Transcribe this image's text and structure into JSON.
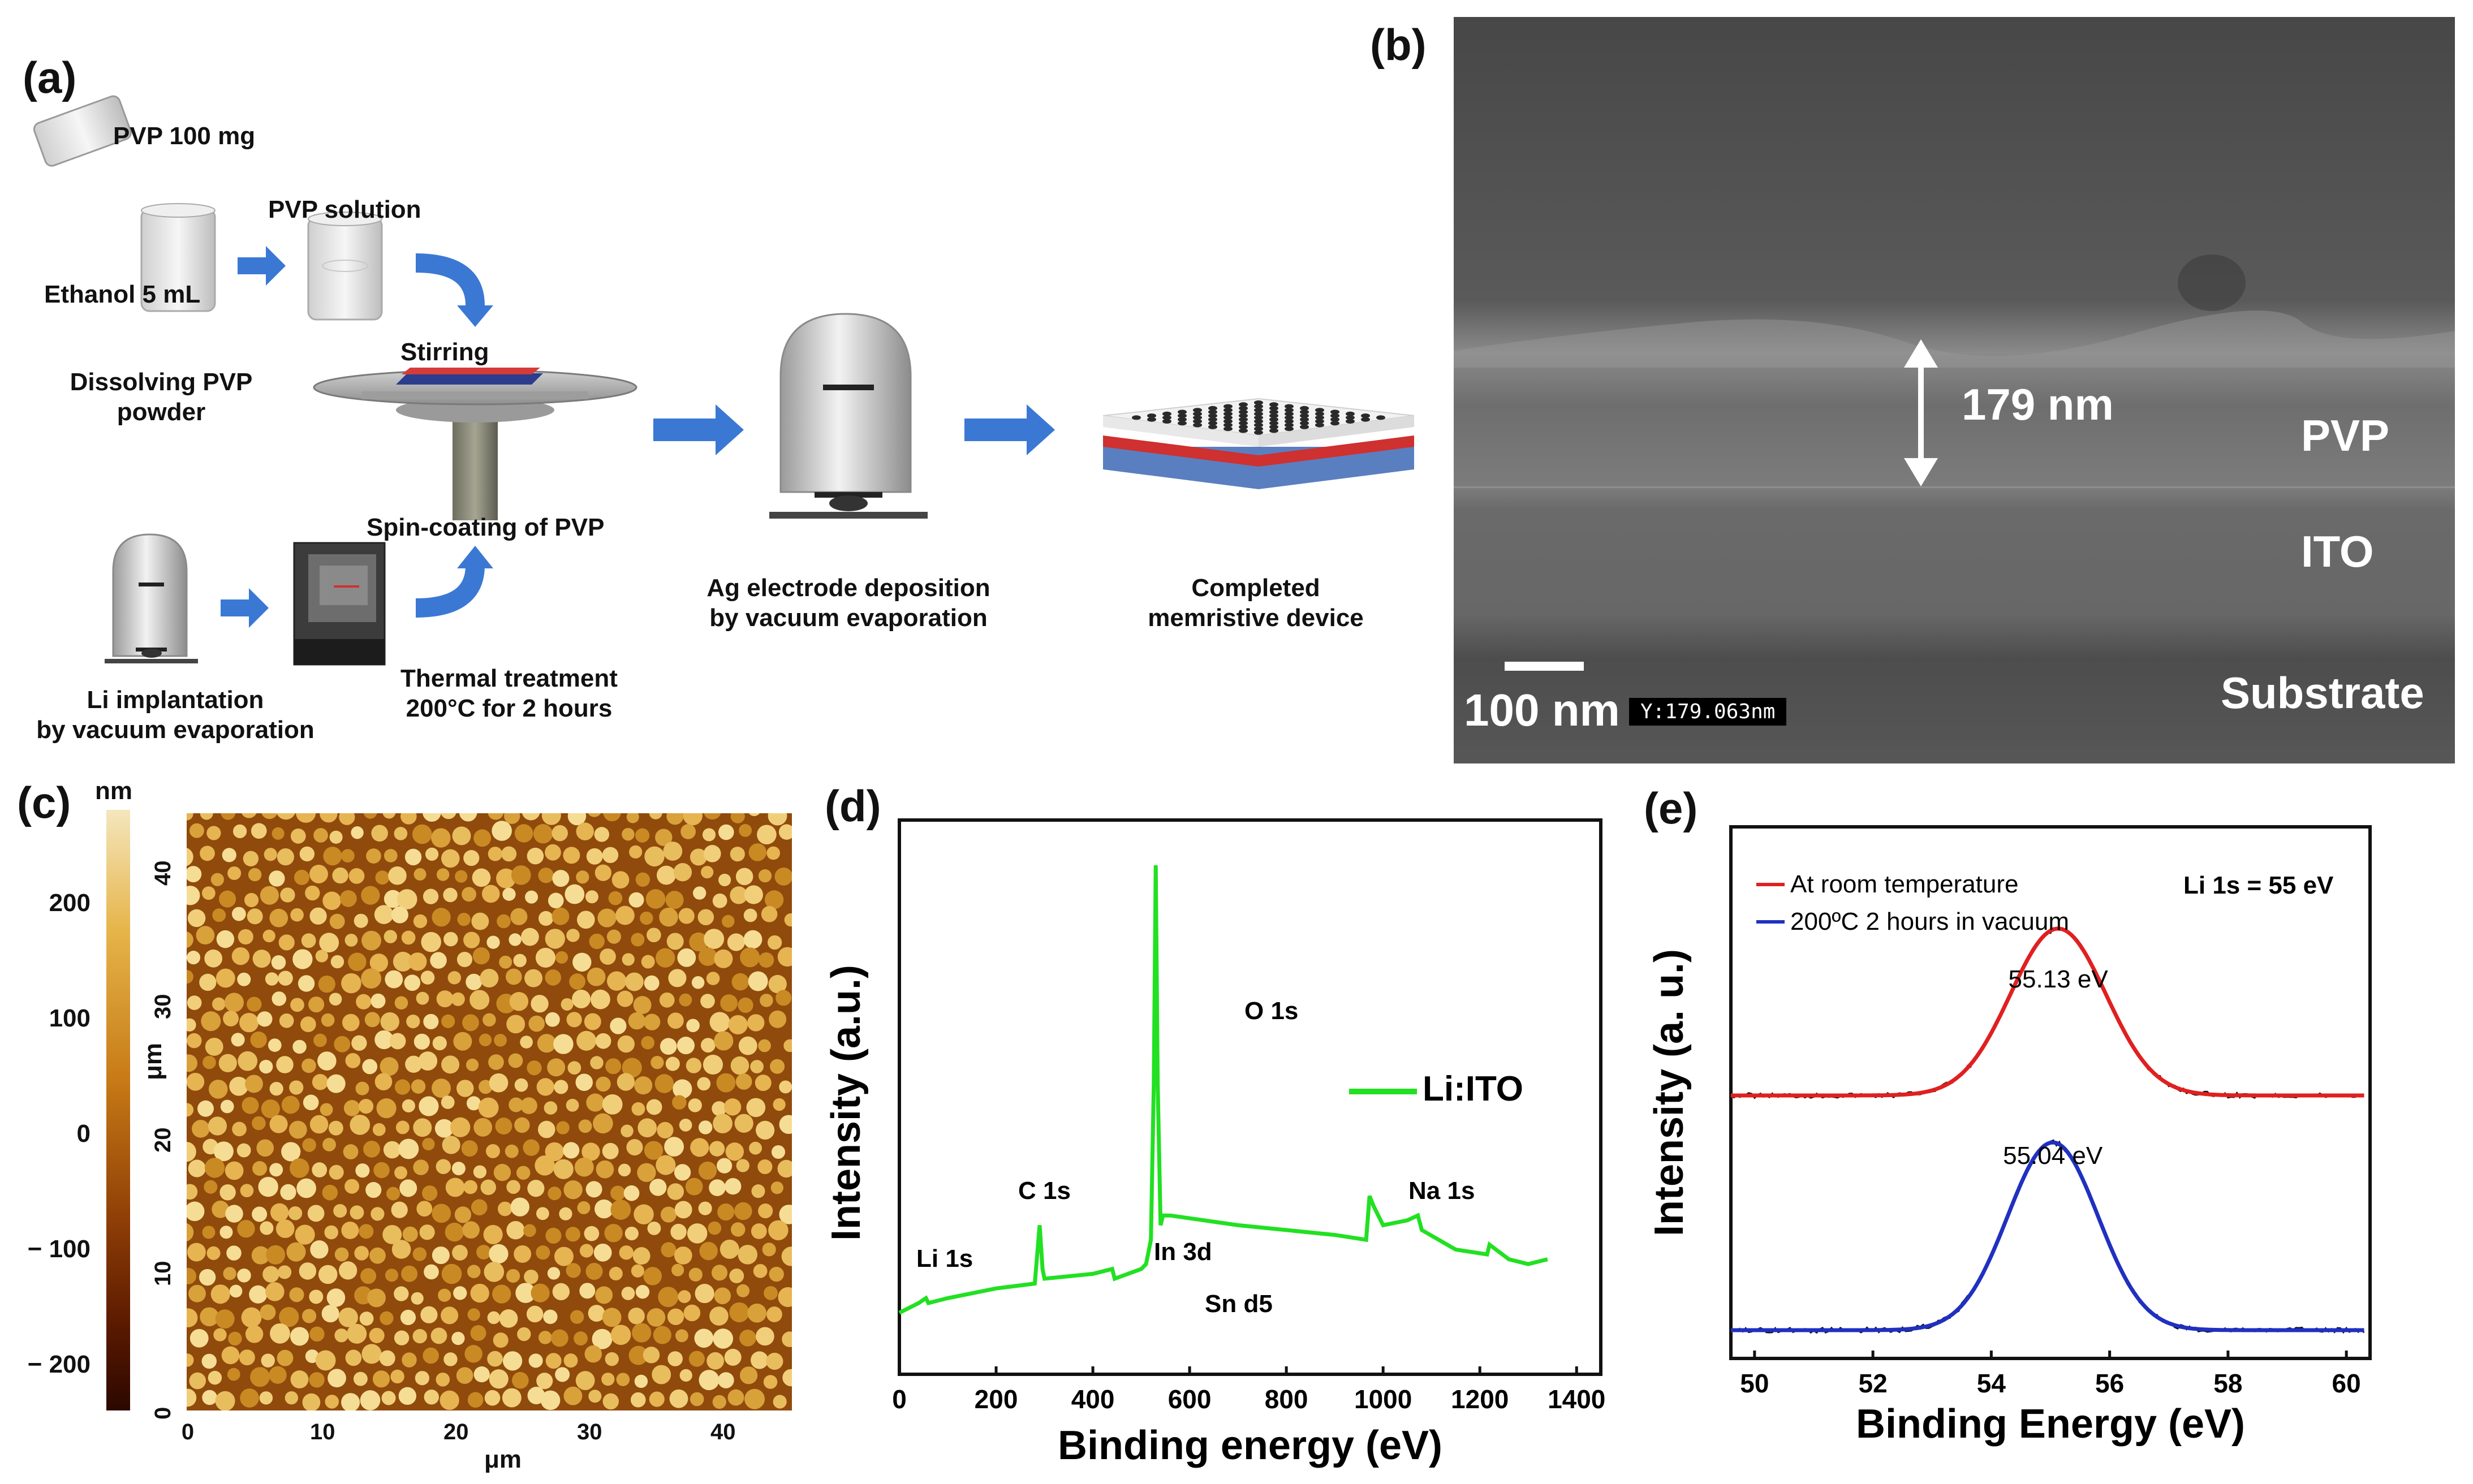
{
  "panel_a": {
    "letter": "(a)",
    "pvp_mass": "PVP 100 mg",
    "ethanol": "Ethanol 5 mL",
    "pvp_solution": "PVP solution",
    "stirring": "Stirring",
    "dissolving_line1": "Dissolving PVP",
    "dissolving_line2": "powder",
    "spin_coating": "Spin-coating of PVP",
    "li_impl_line1": "Li implantation",
    "li_impl_line2": "by vacuum evaporation",
    "thermal_line1": "Thermal treatment",
    "thermal_line2": "200°C for 2 hours",
    "ag_line1": "Ag electrode deposition",
    "ag_line2": "by vacuum evaporation",
    "completed_line1": "Completed",
    "completed_line2": "memristive device"
  },
  "panel_b": {
    "letter": "(b)",
    "thickness": "179 nm",
    "layer_pvp": "PVP",
    "layer_ito": "ITO",
    "layer_substrate": "Substrate",
    "scale": "100 nm",
    "readout": "Y:179.063nm"
  },
  "panel_c": {
    "letter": "(c)",
    "colorbar_unit": "nm",
    "colorbar_ticks": [
      "200",
      "100",
      "0",
      "− 100",
      "− 200"
    ],
    "y_unit": "μm",
    "x_unit": "μm",
    "y_ticks": [
      "0",
      "10",
      "20",
      "30",
      "40"
    ],
    "x_ticks": [
      "0",
      "10",
      "20",
      "30",
      "40"
    ]
  },
  "panel_d": {
    "letter": "(d)",
    "legend": "Li:ITO",
    "ylabel": "Intensity (a.u.)",
    "xlabel": "Binding energy (eV)",
    "peak_labels": [
      "Li 1s",
      "C 1s",
      "In 3d",
      "Sn d5",
      "O 1s",
      "Na 1s"
    ]
  },
  "panel_e": {
    "letter": "(e)",
    "ylabel": "Intensity (a. u.)",
    "xlabel": "Binding Energy (eV)",
    "annotation": "Li 1s = 55 eV",
    "peak_red": "55.13 eV",
    "peak_blue": "55.04 eV",
    "legend": [
      "At room temperature",
      "200ºC 2 hours in vacuum"
    ]
  },
  "chart_data": [
    {
      "type": "line",
      "panel": "d",
      "xlabel": "Binding energy (eV)",
      "ylabel": "Intensity (a.u.)",
      "xlim": [
        0,
        1450
      ],
      "x_ticks": [
        0,
        200,
        400,
        600,
        800,
        1000,
        1200,
        1400
      ],
      "series": [
        {
          "name": "Li:ITO",
          "color": "#22e022",
          "x": [
            0,
            40,
            55,
            60,
            100,
            200,
            280,
            285,
            290,
            296,
            300,
            400,
            440,
            445,
            500,
            510,
            520,
            526,
            530,
            534,
            540,
            545,
            560,
            700,
            900,
            965,
            972,
            980,
            990,
            1000,
            1050,
            1072,
            1080,
            1150,
            1215,
            1220,
            1260,
            1300,
            1340
          ],
          "y": [
            0.08,
            0.1,
            0.11,
            0.1,
            0.11,
            0.13,
            0.14,
            0.2,
            0.26,
            0.17,
            0.15,
            0.16,
            0.17,
            0.15,
            0.17,
            0.18,
            0.23,
            0.55,
            1.0,
            0.55,
            0.26,
            0.28,
            0.28,
            0.26,
            0.24,
            0.23,
            0.32,
            0.3,
            0.28,
            0.26,
            0.27,
            0.28,
            0.25,
            0.21,
            0.2,
            0.22,
            0.19,
            0.18,
            0.19
          ]
        }
      ],
      "annotations": [
        "Li 1s",
        "C 1s",
        "In 3d",
        "Sn d5",
        "O 1s",
        "Na 1s"
      ]
    },
    {
      "type": "line",
      "panel": "e",
      "xlabel": "Binding Energy (eV)",
      "ylabel": "Intensity (a. u.)",
      "xlim": [
        49.6,
        60.4
      ],
      "x_ticks": [
        50,
        52,
        54,
        56,
        58,
        60
      ],
      "series": [
        {
          "name": "At room temperature",
          "color": "#e02020",
          "center": 55.13,
          "fwhm": 1.9,
          "baseline": 0.45,
          "height": 0.32
        },
        {
          "name": "200ºC 2 hours in vacuum",
          "color": "#2030c0",
          "center": 55.04,
          "fwhm": 1.8,
          "baseline": 0.0,
          "height": 0.36
        }
      ],
      "annotations": [
        "Li 1s = 55 eV",
        "55.13 eV",
        "55.04 eV"
      ]
    }
  ]
}
